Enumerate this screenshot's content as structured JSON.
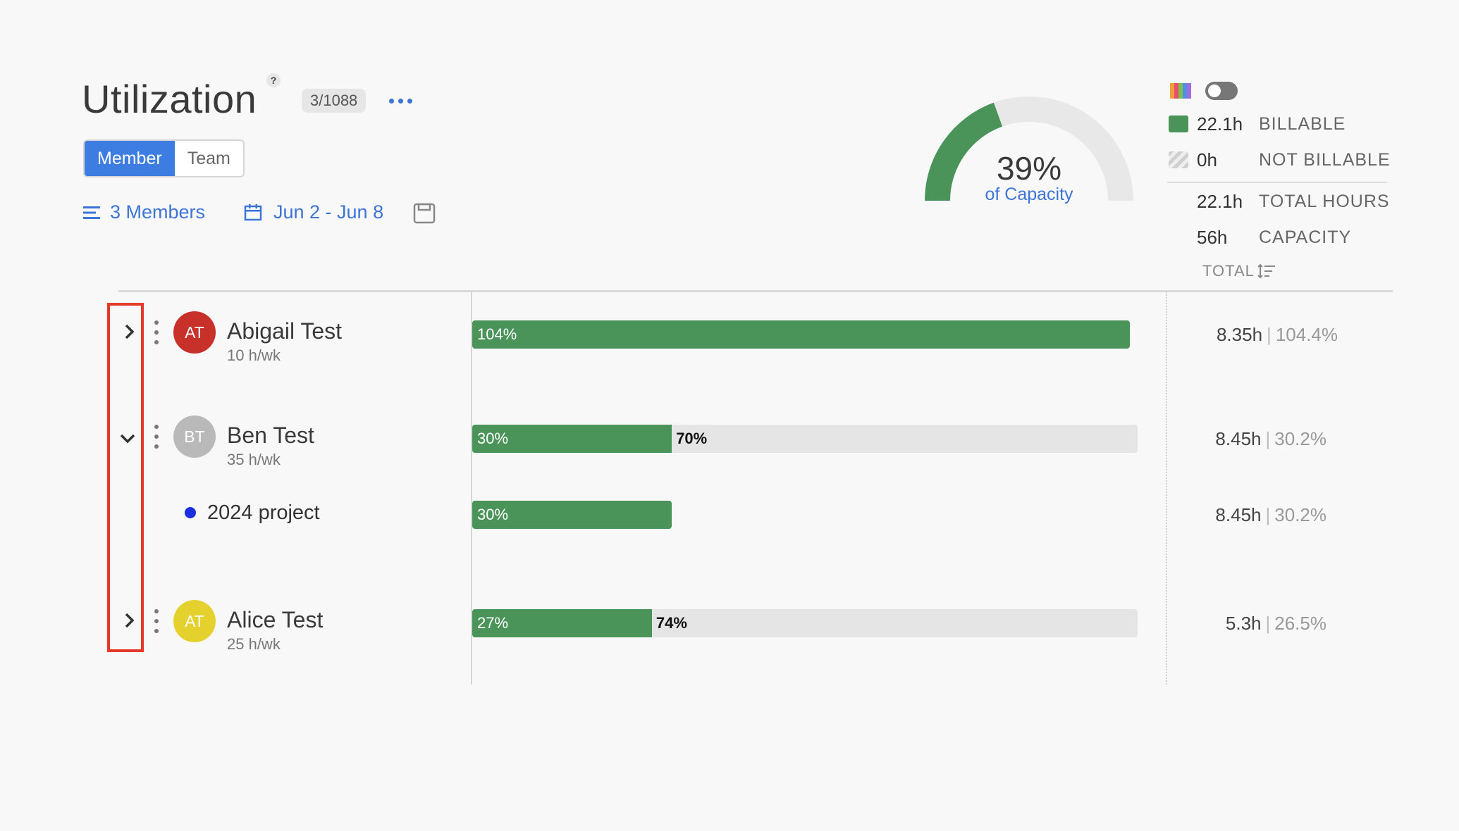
{
  "header": {
    "title": "Utilization",
    "help": "?",
    "count_badge": "3/1088",
    "view_toggle": {
      "member": "Member",
      "team": "Team"
    },
    "filter_label": "3 Members",
    "date_range": "Jun 2 - Jun 8"
  },
  "gauge": {
    "percent": "39%",
    "caption": "of Capacity",
    "fraction": 0.39
  },
  "summary": {
    "billable": {
      "value": "22.1h",
      "label": "BILLABLE"
    },
    "not_billable": {
      "value": "0h",
      "label": "NOT BILLABLE"
    },
    "total_hours": {
      "value": "22.1h",
      "label": "TOTAL HOURS"
    },
    "capacity": {
      "value": "56h",
      "label": "CAPACITY"
    },
    "total_sort": "TOTAL"
  },
  "rows": [
    {
      "initials": "AT",
      "name": "Abigail Test",
      "hours_per_week": "10 h/wk",
      "avatar_color": "#c8312a",
      "bar_label": "104%",
      "remaining_label": "",
      "utilization": 1.04,
      "total_hours": "8.35h",
      "total_pct": "104.4%",
      "expanded": false
    },
    {
      "initials": "BT",
      "name": "Ben Test",
      "hours_per_week": "35 h/wk",
      "avatar_color": "#b9b9b9",
      "bar_label": "30%",
      "remaining_label": "70%",
      "utilization": 0.3,
      "total_hours": "8.45h",
      "total_pct": "30.2%",
      "expanded": true
    },
    {
      "initials": "AT",
      "name": "Alice Test",
      "hours_per_week": "25 h/wk",
      "avatar_color": "#e4d12e",
      "bar_label": "27%",
      "remaining_label": "74%",
      "utilization": 0.27,
      "total_hours": "5.3h",
      "total_pct": "26.5%",
      "expanded": false
    }
  ],
  "project": {
    "name": "2024 project",
    "dot_color": "#1b2fe0",
    "bar_label": "30%",
    "utilization": 0.3,
    "total_hours": "8.45h",
    "total_pct": "30.2%"
  },
  "colors": {
    "accent": "#3d74d8",
    "bar_green": "#4a9459",
    "highlight": "#e53a2a"
  }
}
